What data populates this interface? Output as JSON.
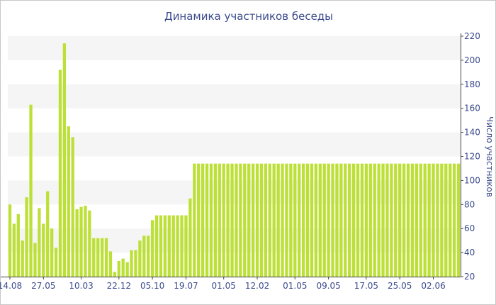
{
  "chart_data": {
    "type": "bar",
    "title": "Динамика участников беседы",
    "xlabel": "",
    "ylabel": "Число участников",
    "ylim": [
      20,
      220
    ],
    "yticks": [
      20,
      40,
      60,
      80,
      100,
      120,
      140,
      160,
      180,
      200,
      220
    ],
    "y_axis_side": "right",
    "grid": "alternating horizontal bands",
    "x_tick_labels": [
      {
        "label": "14.08",
        "index": 0
      },
      {
        "label": "27.05",
        "index": 8
      },
      {
        "label": "10.03",
        "index": 17
      },
      {
        "label": "22.12",
        "index": 26
      },
      {
        "label": "05.10",
        "index": 34
      },
      {
        "label": "19.07",
        "index": 42
      },
      {
        "label": "01.05",
        "index": 51
      },
      {
        "label": "12.02",
        "index": 59
      },
      {
        "label": "01.05",
        "index": 68
      },
      {
        "label": "09.05",
        "index": 76
      },
      {
        "label": "17.05",
        "index": 85
      },
      {
        "label": "25.05",
        "index": 93
      },
      {
        "label": "02.06",
        "index": 101
      }
    ],
    "values": [
      80,
      64,
      72,
      50,
      86,
      163,
      48,
      77,
      64,
      91,
      60,
      44,
      192,
      214,
      145,
      136,
      76,
      78,
      79,
      75,
      52,
      52,
      52,
      52,
      41,
      24,
      33,
      35,
      32,
      42,
      42,
      50,
      54,
      54,
      67,
      71,
      71,
      71,
      71,
      71,
      71,
      71,
      71,
      85,
      114,
      114,
      114,
      114,
      114,
      114,
      114,
      114,
      114,
      114,
      114,
      114,
      114,
      114,
      114,
      114,
      114,
      114,
      114,
      114,
      114,
      114,
      114,
      114,
      114,
      114,
      114,
      114,
      114,
      114,
      114,
      114,
      114,
      114,
      114,
      114,
      114,
      114,
      114,
      114,
      114,
      114,
      114,
      114,
      114,
      114,
      114,
      114,
      114,
      114,
      114,
      114,
      114,
      114,
      114,
      114,
      114,
      114,
      114,
      114,
      114,
      114,
      114,
      114
    ]
  },
  "colors": {
    "bar": "#bde038",
    "band": "#f5f5f5",
    "text": "#3b4a8c",
    "axis": "#444444",
    "border": "#c8c8c8"
  }
}
